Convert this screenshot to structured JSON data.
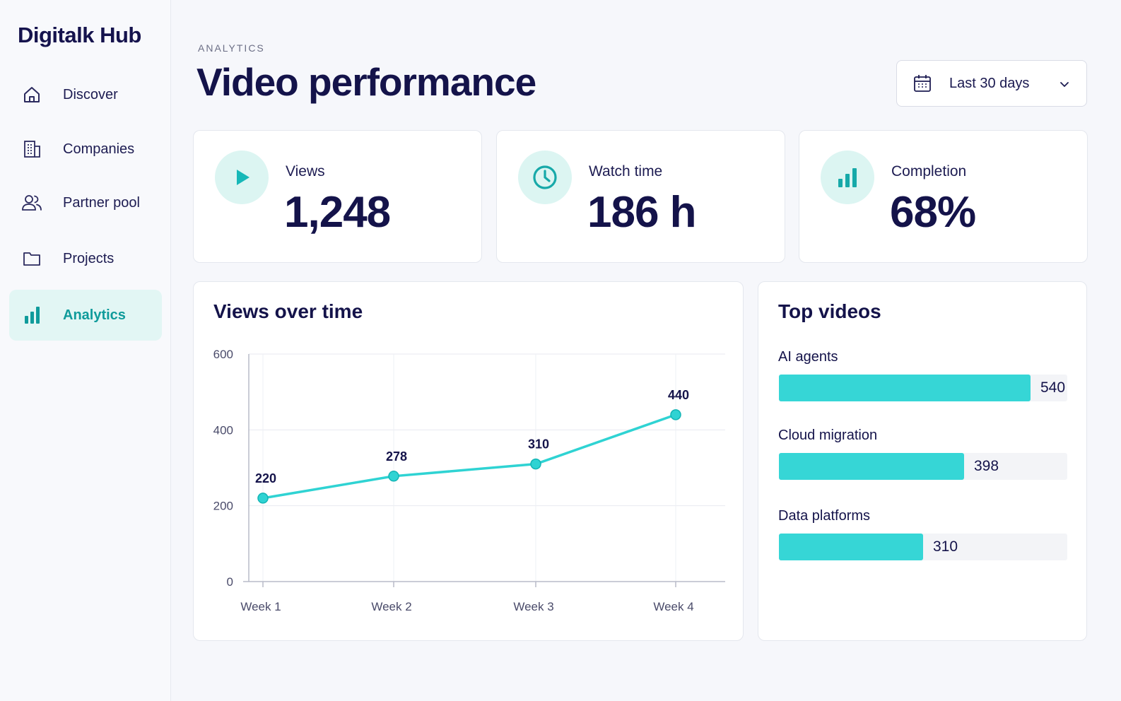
{
  "brand": "Digitalk Hub",
  "sidebar": {
    "items": [
      {
        "label": "Discover",
        "icon": "home-icon"
      },
      {
        "label": "Companies",
        "icon": "building-icon"
      },
      {
        "label": "Partner pool",
        "icon": "users-icon"
      },
      {
        "label": "Projects",
        "icon": "folder-icon"
      },
      {
        "label": "Analytics",
        "icon": "bar-chart-icon",
        "active": true
      }
    ]
  },
  "header": {
    "eyebrow": "ANALYTICS",
    "title": "Video performance",
    "date_range": "Last 30 days"
  },
  "stats": [
    {
      "label": "Views",
      "value": "1,248",
      "icon": "play-icon"
    },
    {
      "label": "Watch time",
      "value": "186 h",
      "icon": "clock-icon"
    },
    {
      "label": "Completion",
      "value": "68%",
      "icon": "bar-chart-icon"
    }
  ],
  "chart_data": {
    "type": "line",
    "title": "Views over time",
    "categories": [
      "Week 1",
      "Week 2",
      "Week 3",
      "Week 4"
    ],
    "values": [
      220,
      278,
      310,
      440
    ],
    "data_labels": [
      "220",
      "278",
      "310",
      "440"
    ],
    "yticks": [
      "0",
      "200",
      "400",
      "600"
    ],
    "ylim": [
      0,
      600
    ],
    "grid": true,
    "color": "#2fd3d3"
  },
  "top_videos": {
    "title": "Top videos",
    "max": 540,
    "items": [
      {
        "label": "AI agents",
        "value": "540",
        "fill": 540
      },
      {
        "label": "Cloud migration",
        "value": "398",
        "fill": 398
      },
      {
        "label": "Data platforms",
        "value": "310",
        "fill": 310
      }
    ]
  },
  "colors": {
    "accent": "#2fd3d3",
    "accent_dark": "#0f9b9b",
    "navy": "#14134a",
    "active_bg": "#e2f6f4"
  }
}
